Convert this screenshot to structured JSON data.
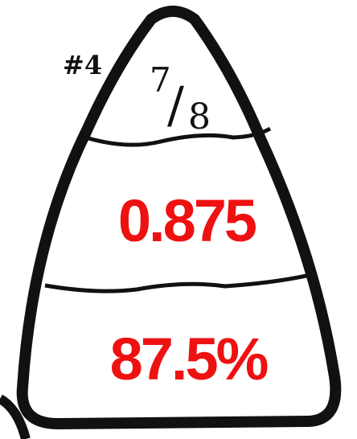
{
  "label": "#4",
  "fraction": {
    "numerator": "7",
    "separator": "/",
    "denominator": "8"
  },
  "decimal": "0.875",
  "percent": "87.5%"
}
